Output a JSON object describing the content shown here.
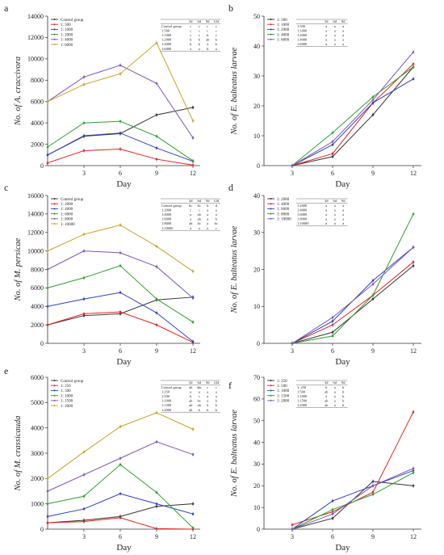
{
  "chart_data": [
    {
      "panel": "a",
      "type": "line",
      "ylabel": "No. of A. craccivora",
      "xlabel": "Day",
      "x": [
        0,
        3,
        6,
        9,
        12
      ],
      "xlim": [
        0,
        12.6
      ],
      "xticks": [
        3,
        6,
        9,
        12
      ],
      "ylim": [
        0,
        14000
      ],
      "yticks": [
        0,
        2000,
        4000,
        6000,
        8000,
        10000,
        12000,
        14000
      ],
      "legend_position": "top-left",
      "series": [
        {
          "name": "Control group",
          "color": "#333333",
          "values": [
            1000,
            2750,
            3000,
            4750,
            5450
          ]
        },
        {
          "name": "1: 500",
          "color": "#e8211d",
          "values": [
            250,
            1400,
            1550,
            600,
            50
          ]
        },
        {
          "name": "1: 1000",
          "color": "#2e3fbf",
          "values": [
            1000,
            2800,
            3050,
            1650,
            400
          ]
        },
        {
          "name": "1: 2000",
          "color": "#2ca02c",
          "values": [
            1750,
            4000,
            4150,
            2750,
            450
          ]
        },
        {
          "name": "1: 4000",
          "color": "#7b57b5",
          "values": [
            6000,
            8300,
            9400,
            7700,
            2600
          ]
        },
        {
          "name": "1: 6000",
          "color": "#c9a227",
          "values": [
            6000,
            7600,
            8600,
            11500,
            4200
          ]
        }
      ],
      "table": {
        "header": [
          "",
          "3d",
          "6d",
          "9d",
          "12d"
        ],
        "rows": [
          [
            "Control group",
            "c",
            "c",
            "c",
            "c"
          ],
          [
            "1:500",
            "c",
            "c",
            "c",
            "c"
          ],
          [
            "1:1000",
            "c",
            "c",
            "b",
            "c"
          ],
          [
            "1:2000",
            "b",
            "b",
            "ab",
            "b"
          ],
          [
            "1:4000",
            "b",
            "b",
            "a",
            "b"
          ],
          [
            "1:6000",
            "a",
            "a",
            "b",
            "a"
          ]
        ]
      }
    },
    {
      "panel": "b",
      "type": "line",
      "ylabel": "No. of E. balteatus larvae",
      "xlabel": "Day",
      "x": [
        3,
        6,
        9,
        12
      ],
      "xlim": [
        0.9,
        12.6
      ],
      "xticks": [
        3,
        6,
        9,
        12
      ],
      "ylim": [
        0,
        50
      ],
      "yticks": [
        0,
        10,
        20,
        30,
        40,
        50
      ],
      "legend_position": "top-left",
      "series": [
        {
          "name": "1: 500",
          "color": "#333333",
          "values": [
            0,
            3,
            17,
            33
          ]
        },
        {
          "name": "1: 1000",
          "color": "#e8211d",
          "values": [
            0,
            4,
            21,
            34
          ]
        },
        {
          "name": "1: 2000",
          "color": "#2e3fbf",
          "values": [
            0,
            7,
            21,
            29
          ]
        },
        {
          "name": "1: 4000",
          "color": "#2ca02c",
          "values": [
            0,
            11,
            23,
            33
          ]
        },
        {
          "name": "1: 6000",
          "color": "#7b57b5",
          "values": [
            0,
            8,
            22,
            38
          ]
        }
      ],
      "table": {
        "header": [
          "",
          "3d",
          "6d",
          "9d"
        ],
        "rows": [
          [
            "1:500",
            "a",
            "a",
            "a"
          ],
          [
            "1:1000",
            "a",
            "a",
            "a"
          ],
          [
            "1:2000",
            "a",
            "a",
            "a"
          ],
          [
            "1:4000",
            "a",
            "a",
            "a"
          ],
          [
            "1:6000",
            "a",
            "a",
            "a"
          ]
        ]
      }
    },
    {
      "panel": "c",
      "type": "line",
      "ylabel": "No. of M. persicae",
      "xlabel": "Day",
      "x": [
        0,
        3,
        6,
        9,
        12
      ],
      "xlim": [
        0,
        12.6
      ],
      "xticks": [
        3,
        6,
        9,
        12
      ],
      "ylim": [
        0,
        16000
      ],
      "yticks": [
        0,
        2000,
        4000,
        6000,
        8000,
        10000,
        12000,
        14000,
        16000
      ],
      "legend_position": "top-left",
      "series": [
        {
          "name": "Control group",
          "color": "#333333",
          "values": [
            2000,
            3000,
            3200,
            4700,
            5000
          ]
        },
        {
          "name": "1: 2000",
          "color": "#e8211d",
          "values": [
            2000,
            3200,
            3400,
            2000,
            100
          ]
        },
        {
          "name": "1: 4000",
          "color": "#2e3fbf",
          "values": [
            4000,
            4800,
            5500,
            3300,
            200
          ]
        },
        {
          "name": "1: 6000",
          "color": "#2ca02c",
          "values": [
            6000,
            7100,
            8400,
            4800,
            2300
          ]
        },
        {
          "name": "1: 8000",
          "color": "#7b57b5",
          "values": [
            8000,
            10000,
            9800,
            8300,
            4900
          ]
        },
        {
          "name": "1: 10000",
          "color": "#c9a227",
          "values": [
            10000,
            11800,
            12800,
            10500,
            7800
          ]
        }
      ],
      "table": {
        "header": [
          "",
          "3d",
          "6d",
          "9d",
          "12d"
        ],
        "rows": [
          [
            "Control group",
            "bc",
            "bc",
            "b",
            "d"
          ],
          [
            "1:2000",
            "c",
            "c",
            "a",
            "a"
          ],
          [
            "1:4000",
            "a",
            "ab",
            "a",
            "a"
          ],
          [
            "1:6000",
            "a",
            "ab",
            "a",
            "b"
          ],
          [
            "1:8000",
            "ab",
            "bc",
            "a",
            "bc"
          ],
          [
            "1:10000",
            "a",
            "a",
            "a",
            "c"
          ]
        ]
      }
    },
    {
      "panel": "d",
      "type": "line",
      "ylabel": "No. of E. balteatus larvae",
      "xlabel": "Day",
      "x": [
        3,
        6,
        9,
        12
      ],
      "xlim": [
        0.9,
        12.6
      ],
      "xticks": [
        3,
        6,
        9,
        12
      ],
      "ylim": [
        0,
        40
      ],
      "yticks": [
        0,
        10,
        20,
        30,
        40
      ],
      "legend_position": "top-left",
      "series": [
        {
          "name": "1: 2000",
          "color": "#333333",
          "values": [
            0,
            3,
            12,
            21
          ]
        },
        {
          "name": "1: 4000",
          "color": "#e8211d",
          "values": [
            0,
            5,
            13,
            22
          ]
        },
        {
          "name": "1: 6000",
          "color": "#2e3fbf",
          "values": [
            0,
            6,
            17,
            26
          ]
        },
        {
          "name": "1: 8000",
          "color": "#2ca02c",
          "values": [
            0,
            2,
            13,
            35
          ]
        },
        {
          "name": "1: 10000",
          "color": "#7b57b5",
          "values": [
            0,
            7,
            16,
            26
          ]
        }
      ],
      "table": {
        "header": [
          "",
          "3d",
          "6d",
          "9d"
        ],
        "rows": [
          [
            "1:2000",
            "a",
            "a",
            "a"
          ],
          [
            "1:4000",
            "a",
            "a",
            "a"
          ],
          [
            "1:6000",
            "a",
            "a",
            "a"
          ],
          [
            "1:8000",
            "a",
            "a",
            "a"
          ],
          [
            "1:10000",
            "a",
            "a",
            "a"
          ]
        ]
      }
    },
    {
      "panel": "e",
      "type": "line",
      "ylabel": "No. of M. crassicauda",
      "xlabel": "Day",
      "x": [
        0,
        3,
        6,
        9,
        12
      ],
      "xlim": [
        0,
        12.6
      ],
      "xticks": [
        3,
        6,
        9,
        12
      ],
      "ylim": [
        0,
        6000
      ],
      "yticks": [
        0,
        1000,
        2000,
        3000,
        4000,
        5000,
        6000
      ],
      "legend_position": "top-left",
      "series": [
        {
          "name": "Control group",
          "color": "#333333",
          "values": [
            250,
            350,
            500,
            900,
            1000
          ]
        },
        {
          "name": "1: 250",
          "color": "#e8211d",
          "values": [
            250,
            300,
            450,
            20,
            0
          ]
        },
        {
          "name": "1: 500",
          "color": "#2e3fbf",
          "values": [
            500,
            800,
            1400,
            1000,
            600
          ]
        },
        {
          "name": "1: 1000",
          "color": "#2ca02c",
          "values": [
            1000,
            1300,
            2550,
            1450,
            50
          ]
        },
        {
          "name": "1: 1500",
          "color": "#7b57b5",
          "values": [
            1500,
            2150,
            2800,
            3450,
            2950
          ]
        },
        {
          "name": "1: 2000",
          "color": "#c9a227",
          "values": [
            2000,
            3050,
            4050,
            4600,
            3950
          ]
        }
      ],
      "table": {
        "header": [
          "",
          "3d",
          "6d",
          "9d",
          "12d"
        ],
        "rows": [
          [
            "Control group",
            "ab",
            "abc",
            "c",
            "c"
          ],
          [
            "1:250",
            "a",
            "a",
            "a",
            "a"
          ],
          [
            "1:500",
            "b",
            "c",
            "a",
            "a"
          ],
          [
            "1:1000",
            "ab",
            "bc",
            "a",
            "b"
          ],
          [
            "1:1500",
            "ab",
            "ab",
            "b",
            "b"
          ],
          [
            "1:2000",
            "ab",
            "b",
            "b",
            "b"
          ]
        ]
      }
    },
    {
      "panel": "f",
      "type": "line",
      "ylabel": "No. of E. balteatus larvae",
      "xlabel": "Day",
      "x": [
        3,
        6,
        9,
        12
      ],
      "xlim": [
        0.9,
        12.6
      ],
      "xticks": [
        3,
        6,
        9,
        12
      ],
      "ylim": [
        0,
        70
      ],
      "yticks": [
        0,
        10,
        20,
        30,
        40,
        50,
        60,
        70
      ],
      "legend_position": "top-left",
      "series": [
        {
          "name": "1: 250",
          "color": "#333333",
          "values": [
            0,
            5,
            22,
            20
          ]
        },
        {
          "name": "1: 500",
          "color": "#e8211d",
          "values": [
            2,
            8,
            17,
            54
          ]
        },
        {
          "name": "1: 1000",
          "color": "#2e3fbf",
          "values": [
            0,
            13,
            20,
            27
          ]
        },
        {
          "name": "1: 1500",
          "color": "#2ca02c",
          "values": [
            0,
            9,
            16,
            26
          ]
        },
        {
          "name": "1: 2000",
          "color": "#7b57b5",
          "values": [
            0,
            7,
            20,
            28
          ]
        }
      ],
      "table": {
        "header": [
          "",
          "3d",
          "6d",
          "9d"
        ],
        "rows": [
          [
            "1: 250",
            "b",
            "a",
            "b"
          ],
          [
            "1:500",
            "ab",
            "a",
            "b"
          ],
          [
            "1:1000",
            "a",
            "a",
            "b"
          ],
          [
            "1:1500",
            "ab",
            "a",
            "b"
          ],
          [
            "1:2000",
            "ab",
            "a",
            "b"
          ]
        ]
      }
    }
  ]
}
